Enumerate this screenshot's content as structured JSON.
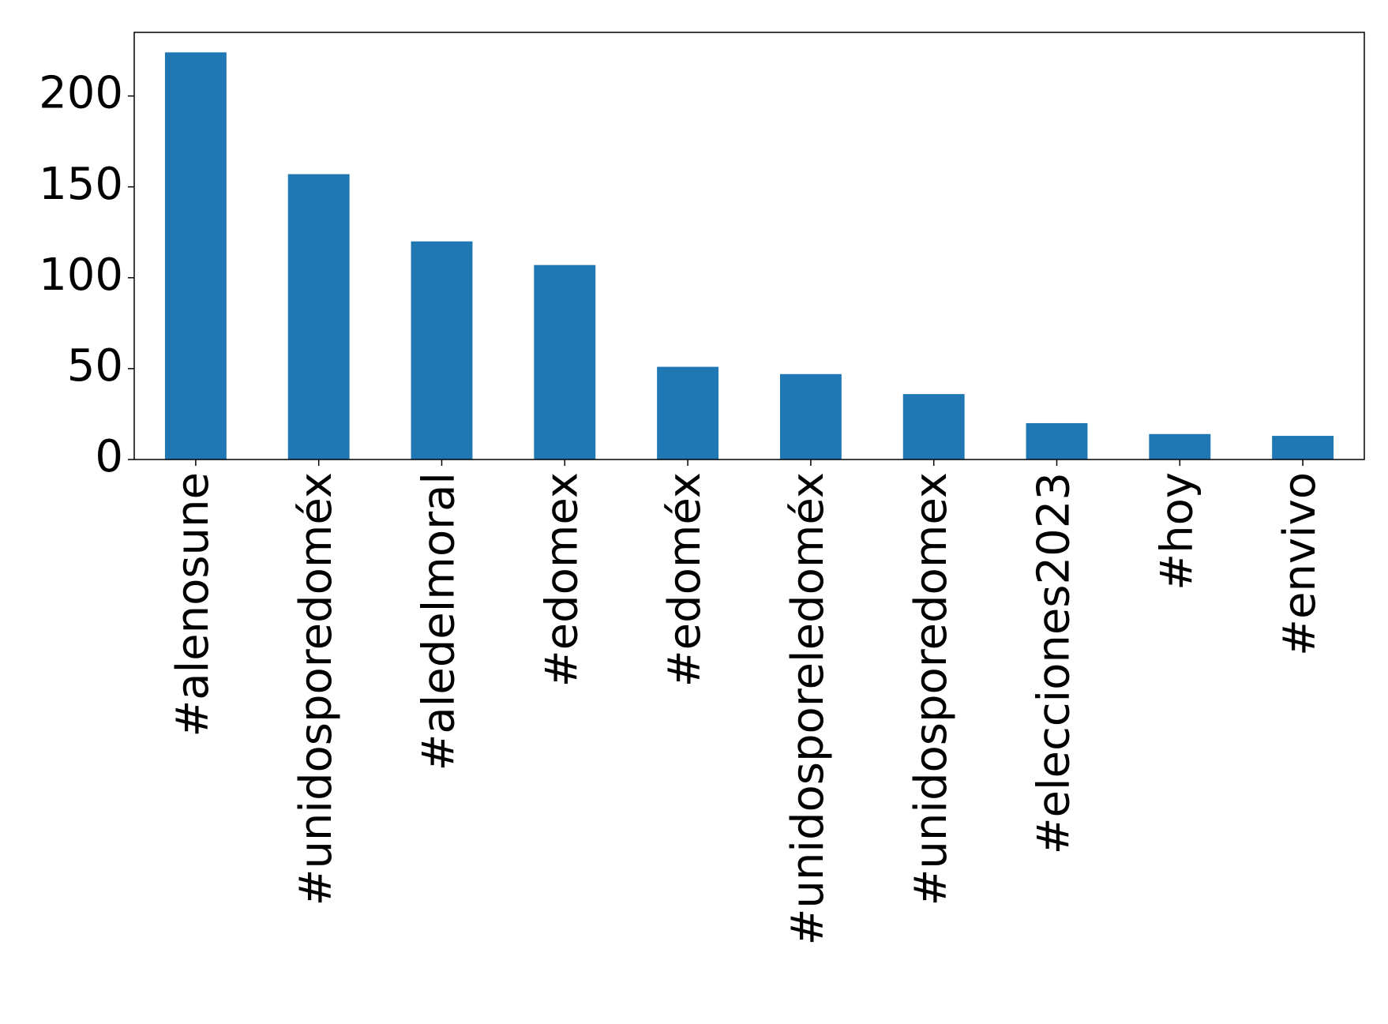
{
  "chart_data": {
    "type": "bar",
    "categories": [
      "#alenosune",
      "#unidosporedoméx",
      "#aledelmoral",
      "#edomex",
      "#edoméx",
      "#unidosporeledoméx",
      "#unidosporedomex",
      "#elecciones2023",
      "#hoy",
      "#envivo"
    ],
    "values": [
      224,
      157,
      120,
      107,
      51,
      47,
      36,
      20,
      14,
      13
    ],
    "color": "#1f77b4",
    "ylim": [
      0,
      235
    ],
    "yticks": [
      0,
      50,
      100,
      150,
      200
    ],
    "grid": false
  }
}
